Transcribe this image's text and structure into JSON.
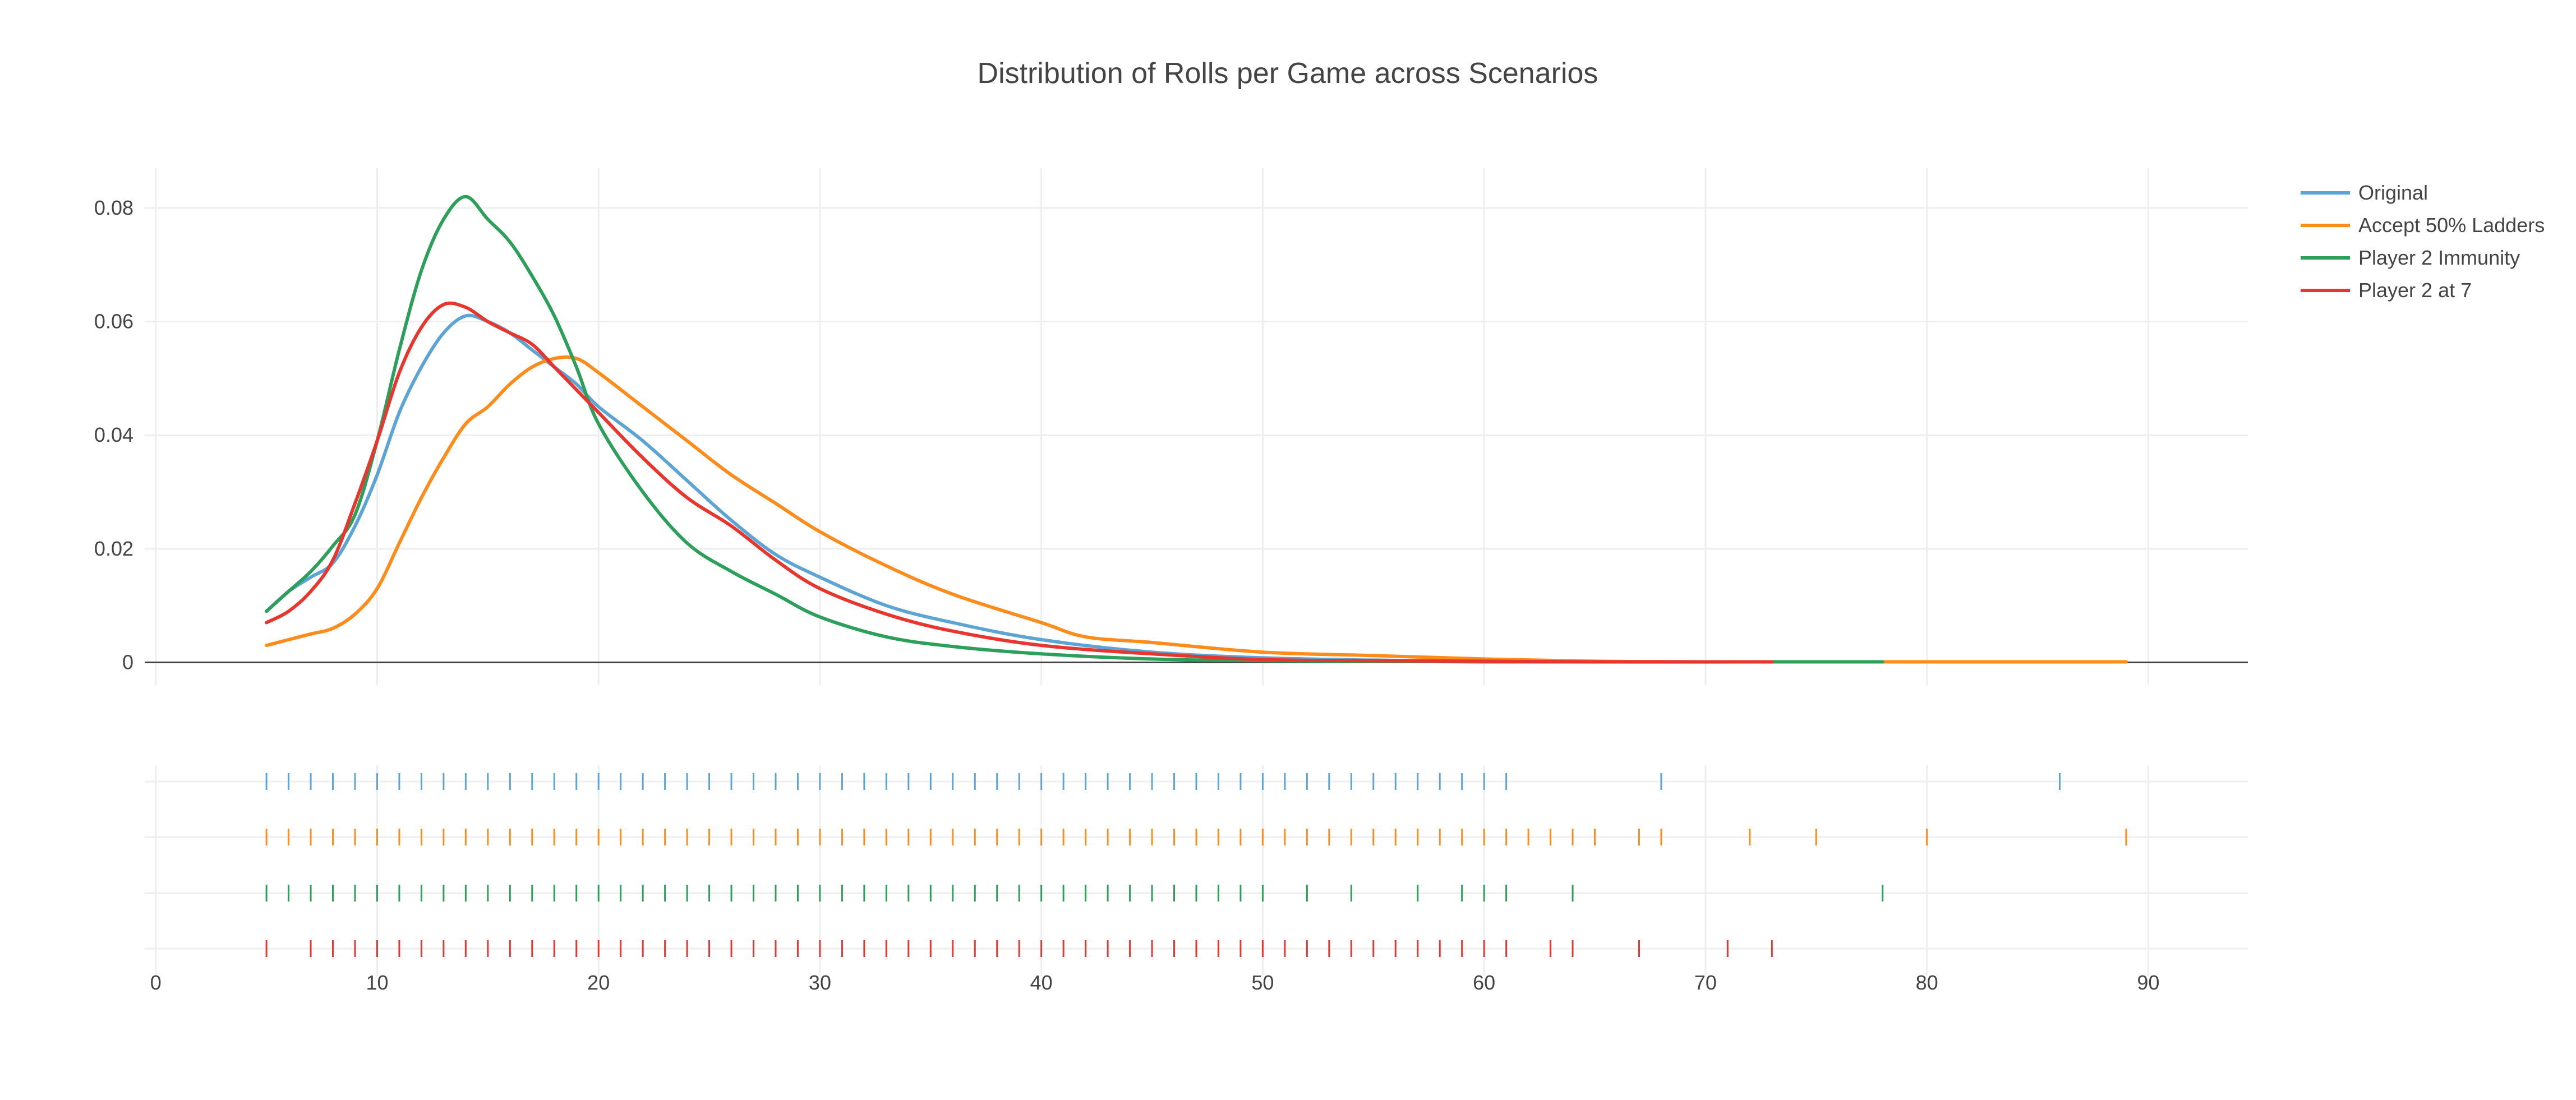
{
  "chart_data": {
    "type": "line",
    "title": "Distribution of Rolls per Game across Scenarios",
    "xlabel": "",
    "ylabel": "",
    "xlim": [
      -0.5,
      94.5
    ],
    "ylim": [
      -0.004,
      0.087
    ],
    "x_ticks": [
      0,
      10,
      20,
      30,
      40,
      50,
      60,
      70,
      80,
      90
    ],
    "y_ticks": [
      0,
      0.02,
      0.04,
      0.06,
      0.08
    ],
    "y_tick_labels": [
      "0",
      "0.02",
      "0.04",
      "0.06",
      "0.08"
    ],
    "grid": true,
    "legend_position": "top-right",
    "series": [
      {
        "name": "Original",
        "color": "#5ca4d4",
        "x": [
          5,
          6,
          7,
          8,
          9,
          10,
          11,
          12,
          13,
          14,
          15,
          16,
          17,
          18,
          19,
          20,
          22,
          24,
          26,
          28,
          30,
          33,
          36,
          40,
          45,
          50,
          55,
          60,
          70,
          80,
          86
        ],
        "values": [
          0.009,
          0.0125,
          0.015,
          0.0175,
          0.024,
          0.033,
          0.044,
          0.052,
          0.058,
          0.061,
          0.06,
          0.058,
          0.055,
          0.052,
          0.049,
          0.045,
          0.039,
          0.032,
          0.025,
          0.019,
          0.015,
          0.01,
          0.007,
          0.004,
          0.0018,
          0.0008,
          0.0004,
          0.0002,
          0.0001,
          0.0001,
          0.0001
        ]
      },
      {
        "name": "Accept 50% Ladders",
        "color": "#ff8c1a",
        "x": [
          5,
          6,
          7,
          8,
          9,
          10,
          11,
          12,
          13,
          14,
          15,
          16,
          17,
          18,
          19,
          20,
          22,
          24,
          26,
          28,
          30,
          33,
          36,
          40,
          42,
          45,
          50,
          55,
          60,
          65,
          70,
          80,
          89
        ],
        "values": [
          0.003,
          0.004,
          0.005,
          0.006,
          0.0085,
          0.013,
          0.021,
          0.029,
          0.036,
          0.042,
          0.045,
          0.049,
          0.052,
          0.0535,
          0.0535,
          0.051,
          0.045,
          0.039,
          0.033,
          0.028,
          0.023,
          0.017,
          0.012,
          0.007,
          0.0045,
          0.0035,
          0.0018,
          0.0012,
          0.0006,
          0.0002,
          0.0001,
          0.0001,
          0.0001
        ]
      },
      {
        "name": "Player 2 Immunity",
        "color": "#2ca05a",
        "x": [
          5,
          6,
          7,
          8,
          9,
          10,
          11,
          12,
          13,
          14,
          15,
          16,
          17,
          18,
          19,
          20,
          22,
          24,
          26,
          28,
          30,
          33,
          36,
          40,
          45,
          50,
          60,
          78
        ],
        "values": [
          0.009,
          0.0125,
          0.016,
          0.0205,
          0.026,
          0.039,
          0.055,
          0.069,
          0.078,
          0.082,
          0.078,
          0.074,
          0.068,
          0.061,
          0.052,
          0.042,
          0.03,
          0.021,
          0.016,
          0.012,
          0.008,
          0.0045,
          0.0028,
          0.0015,
          0.0006,
          0.0003,
          0.0001,
          0.0001
        ]
      },
      {
        "name": "Player 2 at 7",
        "color": "#e8352e",
        "x": [
          5,
          6,
          7,
          8,
          9,
          10,
          11,
          12,
          13,
          14,
          15,
          16,
          17,
          18,
          19,
          20,
          22,
          24,
          26,
          28,
          30,
          33,
          36,
          40,
          45,
          50,
          55,
          60,
          65,
          73
        ],
        "values": [
          0.007,
          0.009,
          0.0125,
          0.018,
          0.028,
          0.039,
          0.051,
          0.059,
          0.063,
          0.0625,
          0.06,
          0.058,
          0.056,
          0.052,
          0.048,
          0.044,
          0.036,
          0.029,
          0.024,
          0.018,
          0.013,
          0.0085,
          0.0055,
          0.003,
          0.0015,
          0.0005,
          0.0003,
          0.0002,
          0.0001,
          0.0001
        ]
      }
    ],
    "rug": [
      {
        "name": "Original",
        "x": [
          5,
          6,
          7,
          8,
          9,
          10,
          11,
          12,
          13,
          14,
          15,
          16,
          17,
          18,
          19,
          20,
          21,
          22,
          23,
          24,
          25,
          26,
          27,
          28,
          29,
          30,
          31,
          32,
          33,
          34,
          35,
          36,
          37,
          38,
          39,
          40,
          41,
          42,
          43,
          44,
          45,
          46,
          47,
          48,
          49,
          50,
          51,
          52,
          53,
          54,
          55,
          56,
          57,
          58,
          59,
          60,
          61,
          68,
          86
        ]
      },
      {
        "name": "Accept 50% Ladders",
        "x": [
          5,
          6,
          7,
          8,
          9,
          10,
          11,
          12,
          13,
          14,
          15,
          16,
          17,
          18,
          19,
          20,
          21,
          22,
          23,
          24,
          25,
          26,
          27,
          28,
          29,
          30,
          31,
          32,
          33,
          34,
          35,
          36,
          37,
          38,
          39,
          40,
          41,
          42,
          43,
          44,
          45,
          46,
          47,
          48,
          49,
          50,
          51,
          52,
          53,
          54,
          55,
          56,
          57,
          58,
          59,
          60,
          61,
          62,
          63,
          64,
          65,
          67,
          68,
          72,
          75,
          80,
          89
        ]
      },
      {
        "name": "Player 2 Immunity",
        "x": [
          5,
          6,
          7,
          8,
          9,
          10,
          11,
          12,
          13,
          14,
          15,
          16,
          17,
          18,
          19,
          20,
          21,
          22,
          23,
          24,
          25,
          26,
          27,
          28,
          29,
          30,
          31,
          32,
          33,
          34,
          35,
          36,
          37,
          38,
          39,
          40,
          41,
          42,
          43,
          44,
          45,
          46,
          47,
          48,
          49,
          50,
          52,
          54,
          57,
          59,
          60,
          61,
          64,
          78
        ]
      },
      {
        "name": "Player 2 at 7",
        "x": [
          5,
          7,
          8,
          9,
          10,
          11,
          12,
          13,
          14,
          15,
          16,
          17,
          18,
          19,
          20,
          21,
          22,
          23,
          24,
          25,
          26,
          27,
          28,
          29,
          30,
          31,
          32,
          33,
          34,
          35,
          36,
          37,
          38,
          39,
          40,
          41,
          42,
          43,
          44,
          45,
          46,
          47,
          48,
          49,
          50,
          51,
          52,
          53,
          54,
          55,
          56,
          57,
          58,
          59,
          60,
          61,
          63,
          64,
          67,
          71,
          73
        ]
      }
    ]
  }
}
